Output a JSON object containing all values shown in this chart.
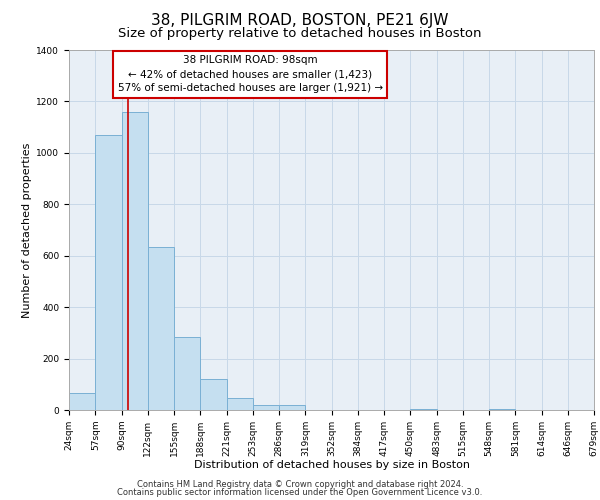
{
  "title": "38, PILGRIM ROAD, BOSTON, PE21 6JW",
  "subtitle": "Size of property relative to detached houses in Boston",
  "xlabel": "Distribution of detached houses by size in Boston",
  "ylabel": "Number of detached properties",
  "bin_edges": [
    24,
    57,
    90,
    122,
    155,
    188,
    221,
    253,
    286,
    319,
    352,
    384,
    417,
    450,
    483,
    515,
    548,
    581,
    614,
    646,
    679
  ],
  "bar_heights": [
    65,
    1070,
    1160,
    635,
    285,
    120,
    45,
    20,
    20,
    0,
    0,
    0,
    0,
    5,
    0,
    0,
    5,
    0,
    0,
    0
  ],
  "bar_color": "#c5dff0",
  "bar_edge_color": "#7ab0d4",
  "property_sqm": 98,
  "vline_color": "#cc0000",
  "annotation_title": "38 PILGRIM ROAD: 98sqm",
  "annotation_line1": "← 42% of detached houses are smaller (1,423)",
  "annotation_line2": "57% of semi-detached houses are larger (1,921) →",
  "annotation_box_color": "#cc0000",
  "ylim": [
    0,
    1400
  ],
  "yticks": [
    0,
    200,
    400,
    600,
    800,
    1000,
    1200,
    1400
  ],
  "tick_labels": [
    "24sqm",
    "57sqm",
    "90sqm",
    "122sqm",
    "155sqm",
    "188sqm",
    "221sqm",
    "253sqm",
    "286sqm",
    "319sqm",
    "352sqm",
    "384sqm",
    "417sqm",
    "450sqm",
    "483sqm",
    "515sqm",
    "548sqm",
    "581sqm",
    "614sqm",
    "646sqm",
    "679sqm"
  ],
  "footnote1": "Contains HM Land Registry data © Crown copyright and database right 2024.",
  "footnote2": "Contains public sector information licensed under the Open Government Licence v3.0.",
  "grid_color": "#c8d8e8",
  "bg_color": "#e8eff6",
  "title_fontsize": 11,
  "subtitle_fontsize": 9.5,
  "axis_label_fontsize": 8,
  "tick_fontsize": 6.5,
  "footnote_fontsize": 6,
  "annotation_fontsize": 7.5
}
